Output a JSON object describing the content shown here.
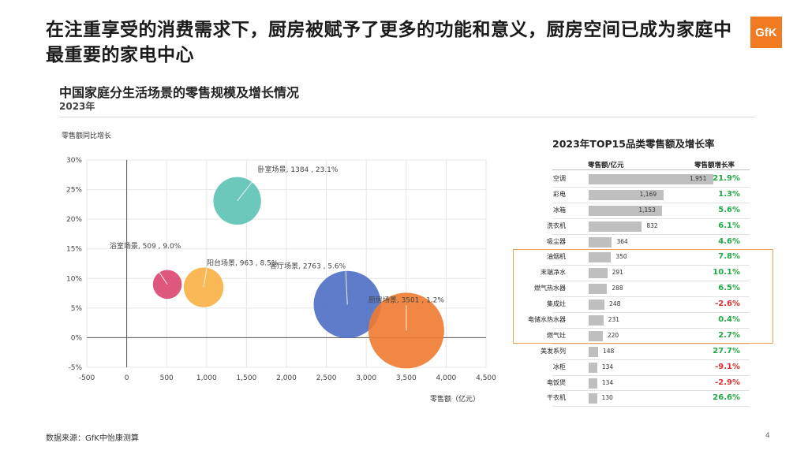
{
  "headline": "在注重享受的消费需求下，厨房被赋予了更多的功能和意义，厨房空间已成为家庭中最重要的家电中心",
  "logo_text": "GfK",
  "sub_title": "中国家庭分生活场景的零售规模及增长情况",
  "sub_year": "2023年",
  "footer": "数据来源：GfK中怡康测算",
  "page_number": "4",
  "colors": {
    "positive": "#22a845",
    "negative": "#d93030",
    "bar": "#bfbfbf",
    "highlight": "#f0a050"
  },
  "chart_data": {
    "type": "scatter",
    "subtype": "bubble",
    "ylabel": "零售额同比增长",
    "xlabel": "零售额（亿元）",
    "xlim": [
      -500,
      4500
    ],
    "ylim": [
      -5,
      30
    ],
    "xticks": [
      "-500",
      "0",
      "500",
      "1,000",
      "1,500",
      "2,000",
      "2,500",
      "3,000",
      "3,500",
      "4,000",
      "4,500"
    ],
    "yticks": [
      "-5%",
      "0%",
      "5%",
      "10%",
      "15%",
      "20%",
      "25%",
      "30%"
    ],
    "grid": true,
    "points": [
      {
        "label": "卧室场景, 1384 , 23.1%",
        "x": 1384,
        "y": 23.1,
        "size": 1384,
        "color": "#5bc2b2"
      },
      {
        "label": "浴室场景, 509 , 9.0%",
        "x": 509,
        "y": 9.0,
        "size": 509,
        "color": "#d9466e"
      },
      {
        "label": "阳台场景, 963 , 8.5%",
        "x": 963,
        "y": 8.5,
        "size": 963,
        "color": "#f8b043"
      },
      {
        "label": "客厅场景, 2763 , 5.6%",
        "x": 2763,
        "y": 5.6,
        "size": 2763,
        "color": "#4d6ec4"
      },
      {
        "label": "厨房场景, 3501 , 1.2%",
        "x": 3501,
        "y": 1.2,
        "size": 3501,
        "color": "#ee7a30"
      }
    ]
  },
  "table": {
    "title": "2023年TOP15品类零售额及增长率",
    "col_sales": "零售额/亿元",
    "col_growth": "零售额增长率",
    "max": 1951,
    "rows": [
      {
        "name": "空调",
        "value": 1951,
        "value_label": "1,951",
        "growth": "21.9%",
        "sign": 1
      },
      {
        "name": "彩电",
        "value": 1169,
        "value_label": "1,169",
        "growth": "1.3%",
        "sign": 1
      },
      {
        "name": "冰箱",
        "value": 1153,
        "value_label": "1,153",
        "growth": "5.6%",
        "sign": 1
      },
      {
        "name": "洗衣机",
        "value": 832,
        "value_label": "832",
        "growth": "6.1%",
        "sign": 1
      },
      {
        "name": "吸尘器",
        "value": 364,
        "value_label": "364",
        "growth": "4.6%",
        "sign": 1
      },
      {
        "name": "油烟机",
        "value": 350,
        "value_label": "350",
        "growth": "7.8%",
        "sign": 1
      },
      {
        "name": "末端净水",
        "value": 291,
        "value_label": "291",
        "growth": "10.1%",
        "sign": 1
      },
      {
        "name": "燃气热水器",
        "value": 288,
        "value_label": "288",
        "growth": "6.5%",
        "sign": 1
      },
      {
        "name": "集成灶",
        "value": 248,
        "value_label": "248",
        "growth": "-2.6%",
        "sign": -1
      },
      {
        "name": "电储水热水器",
        "value": 231,
        "value_label": "231",
        "growth": "0.4%",
        "sign": 1
      },
      {
        "name": "燃气灶",
        "value": 220,
        "value_label": "220",
        "growth": "2.7%",
        "sign": 1
      },
      {
        "name": "美发系列",
        "value": 148,
        "value_label": "148",
        "growth": "27.7%",
        "sign": 1
      },
      {
        "name": "冰柜",
        "value": 134,
        "value_label": "134",
        "growth": "-9.1%",
        "sign": -1
      },
      {
        "name": "电饭煲",
        "value": 134,
        "value_label": "134",
        "growth": "-2.9%",
        "sign": -1
      },
      {
        "name": "干衣机",
        "value": 130,
        "value_label": "130",
        "growth": "26.6%",
        "sign": 1
      }
    ]
  }
}
